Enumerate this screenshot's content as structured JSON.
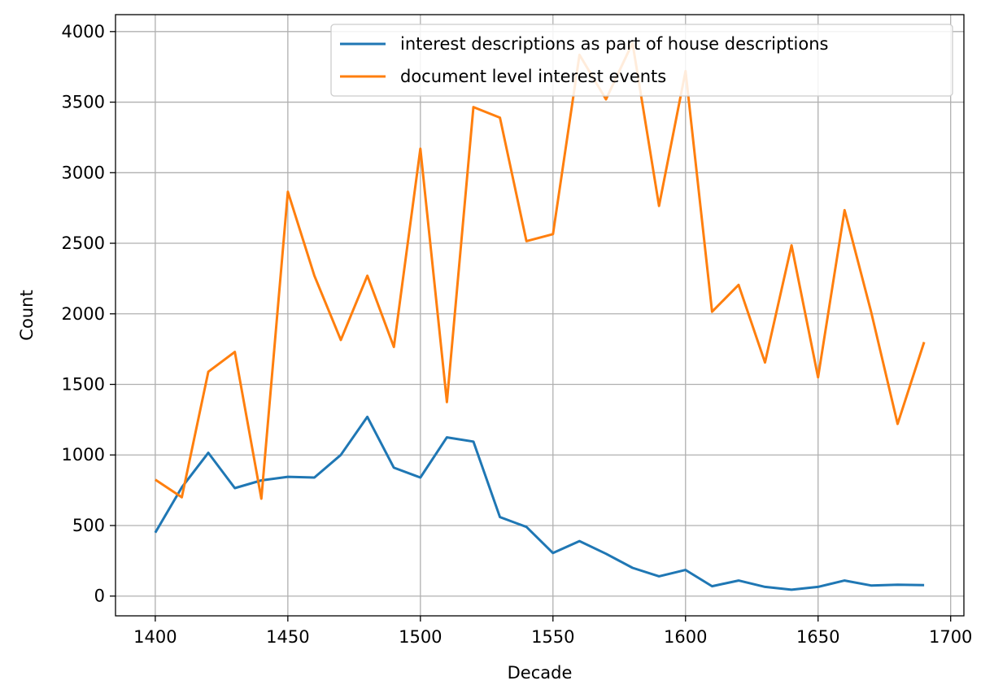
{
  "chart_data": {
    "type": "line",
    "title": "",
    "xlabel": "Decade",
    "ylabel": "Count",
    "xlim": [
      1385,
      1705
    ],
    "ylim": [
      -140,
      4120
    ],
    "xticks": [
      1400,
      1450,
      1500,
      1550,
      1600,
      1650,
      1700
    ],
    "yticks": [
      0,
      500,
      1000,
      1500,
      2000,
      2500,
      3000,
      3500,
      4000
    ],
    "grid": true,
    "legend_position": "top-right",
    "x": [
      1400,
      1410,
      1420,
      1430,
      1440,
      1450,
      1460,
      1470,
      1480,
      1490,
      1500,
      1510,
      1520,
      1530,
      1540,
      1550,
      1560,
      1570,
      1580,
      1590,
      1600,
      1610,
      1620,
      1630,
      1640,
      1650,
      1660,
      1670,
      1680,
      1690
    ],
    "series": [
      {
        "name": "interest descriptions as part of house descriptions",
        "color": "#1f77b4",
        "values": [
          450,
          770,
          1015,
          765,
          820,
          845,
          840,
          1000,
          1270,
          910,
          840,
          1125,
          1095,
          560,
          490,
          305,
          390,
          300,
          200,
          140,
          185,
          70,
          110,
          65,
          45,
          65,
          110,
          75,
          80,
          78
        ]
      },
      {
        "name": "document level interest events",
        "color": "#ff7f0e",
        "values": [
          825,
          700,
          1590,
          1730,
          690,
          2865,
          2270,
          1815,
          2270,
          1765,
          3170,
          1375,
          3465,
          3390,
          2515,
          2565,
          3835,
          3520,
          3920,
          2765,
          3720,
          2015,
          2205,
          1655,
          2485,
          1550,
          2735,
          2015,
          1220,
          1800
        ]
      }
    ]
  }
}
